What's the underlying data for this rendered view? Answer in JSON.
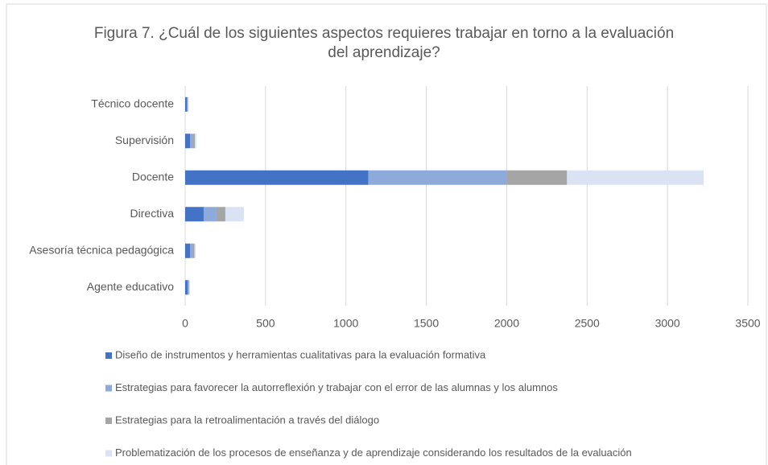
{
  "chart_data": {
    "type": "stacked_bar_horizontal",
    "title": "Figura 7. ¿Cuál de los siguientes aspectos requieres trabajar en torno a la evaluación del aprendizaje?",
    "categories": [
      "Técnico docente",
      "Supervisión",
      "Docente",
      "Directiva",
      "Asesoría técnica pedagógica",
      "Agente educativo"
    ],
    "series": [
      {
        "name": "Diseño de instrumentos y herramientas cualitativas para la evaluación formativa",
        "color": "#4472c4",
        "values": [
          12,
          30,
          1140,
          115,
          30,
          15
        ]
      },
      {
        "name": "Estrategias para favorecer la autorreflexión y trabajar con el error de las alumnas y los alumnos",
        "color": "#8eaadb",
        "values": [
          4,
          20,
          860,
          80,
          20,
          8
        ]
      },
      {
        "name": "Estrategias para la retroalimentación a través del diálogo",
        "color": "#a5a5a5",
        "values": [
          2,
          10,
          375,
          55,
          8,
          2
        ]
      },
      {
        "name": "Problematización de los procesos de enseñanza y de aprendizaje considerando los resultados de la evaluación",
        "color": "#dae3f3",
        "values": [
          4,
          10,
          850,
          115,
          7,
          5
        ]
      }
    ],
    "xlim": [
      0,
      3500
    ],
    "xticks": [
      0,
      500,
      1000,
      1500,
      2000,
      2500,
      3000,
      3500
    ],
    "grid": true,
    "legend": "bottom"
  }
}
